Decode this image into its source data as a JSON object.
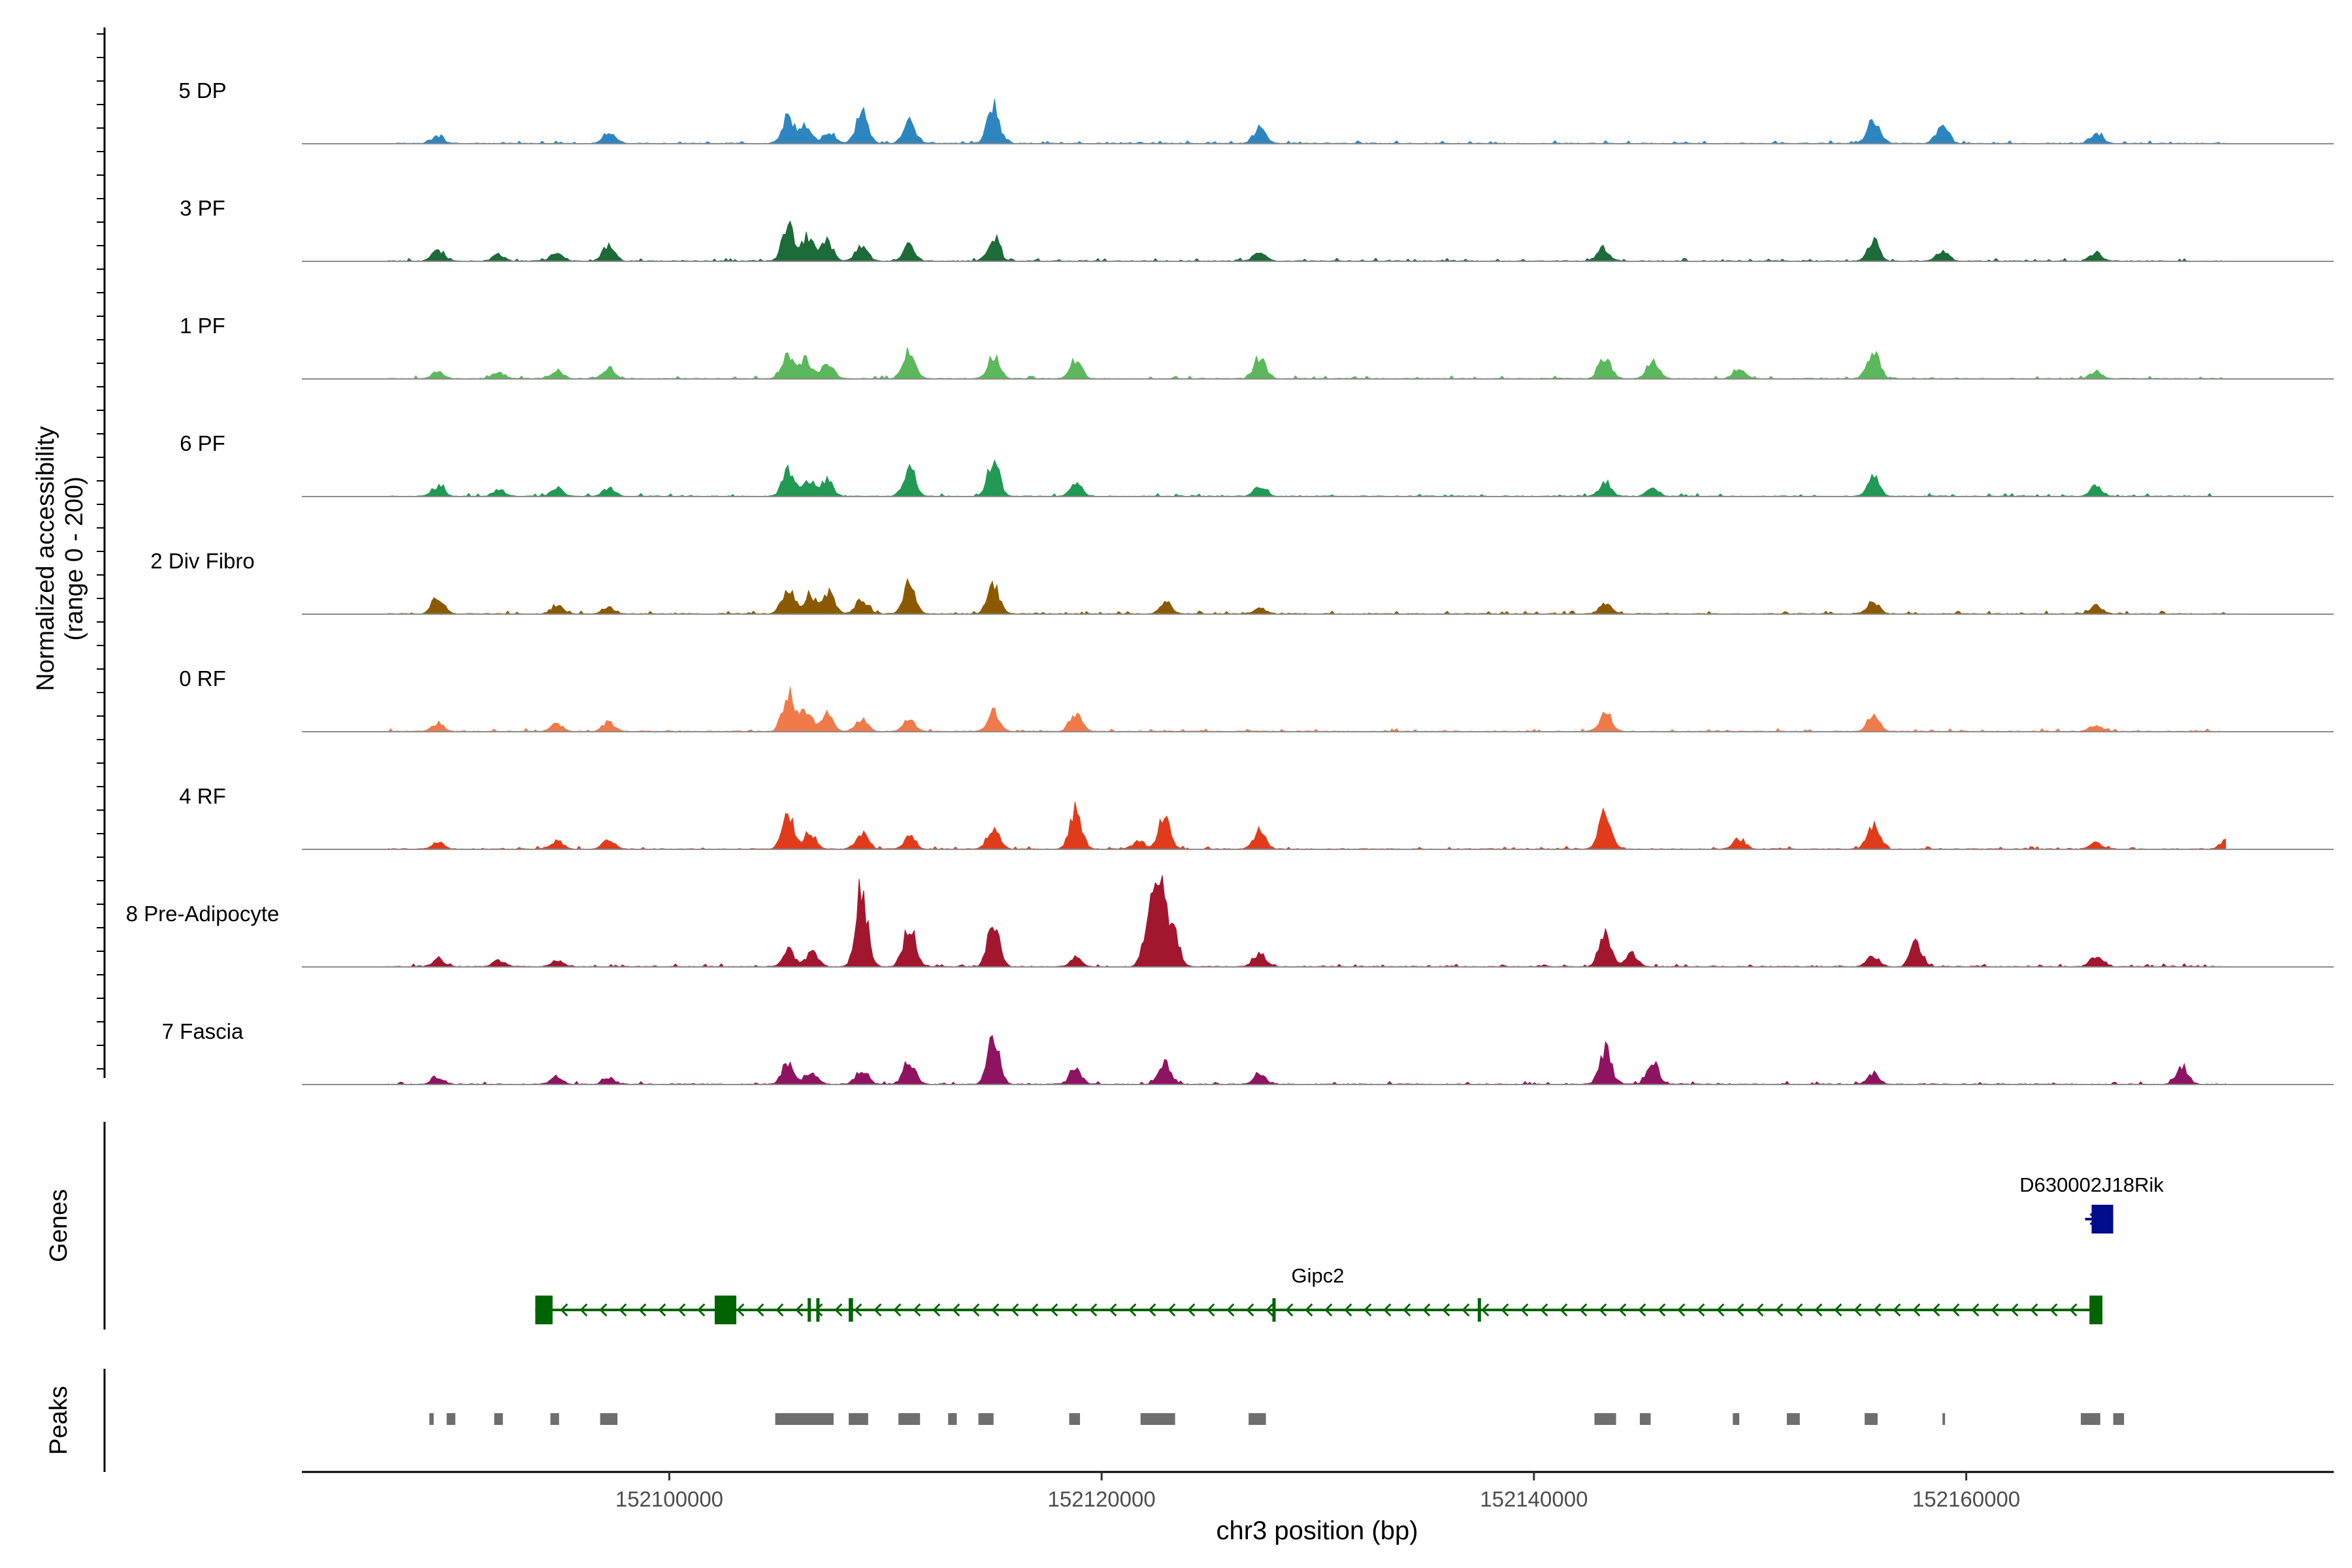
{
  "chart_data": {
    "type": "area",
    "title": "",
    "ylabel_line1": "Normalized accessibility",
    "ylabel_line2": "(range 0 - 200)",
    "ylim": [
      0,
      200
    ],
    "xlabel": "chr3 position (bp)",
    "xlim": [
      152083000,
      152177000
    ],
    "xticks": [
      152100000,
      152120000,
      152140000,
      152160000
    ],
    "xtick_labels": [
      "152100000",
      "152120000",
      "152140000",
      "152160000"
    ],
    "data_range": [
      152087000,
      152172000
    ],
    "series": [
      {
        "name": "5 DP",
        "color": "#2E86C1",
        "peaks": [
          [
            152089300,
            18
          ],
          [
            152097200,
            28
          ],
          [
            152105500,
            60
          ],
          [
            152106300,
            40
          ],
          [
            152107400,
            30
          ],
          [
            152108900,
            75
          ],
          [
            152111100,
            58
          ],
          [
            152115000,
            88
          ],
          [
            152127300,
            35
          ],
          [
            152155700,
            55
          ],
          [
            152158900,
            48
          ],
          [
            152166000,
            25
          ]
        ]
      },
      {
        "name": "3 PF",
        "color": "#1E6B3A",
        "peaks": [
          [
            152089300,
            25
          ],
          [
            152092100,
            15
          ],
          [
            152094800,
            20
          ],
          [
            152097200,
            38
          ],
          [
            152105500,
            80
          ],
          [
            152106400,
            60
          ],
          [
            152107300,
            45
          ],
          [
            152108900,
            40
          ],
          [
            152111100,
            36
          ],
          [
            152115000,
            58
          ],
          [
            152127300,
            20
          ],
          [
            152143200,
            30
          ],
          [
            152155700,
            48
          ],
          [
            152158900,
            25
          ],
          [
            152166000,
            20
          ]
        ]
      },
      {
        "name": "1 PF",
        "color": "#5CB85C",
        "peaks": [
          [
            152089300,
            15
          ],
          [
            152092100,
            15
          ],
          [
            152094800,
            18
          ],
          [
            152097200,
            22
          ],
          [
            152105500,
            60
          ],
          [
            152106300,
            48
          ],
          [
            152107300,
            38
          ],
          [
            152111100,
            65
          ],
          [
            152115000,
            55
          ],
          [
            152118800,
            45
          ],
          [
            152127300,
            52
          ],
          [
            152143300,
            55
          ],
          [
            152145500,
            40
          ],
          [
            152149500,
            25
          ],
          [
            152155700,
            70
          ],
          [
            152166000,
            18
          ]
        ]
      },
      {
        "name": "6 PF",
        "color": "#229954",
        "peaks": [
          [
            152089300,
            25
          ],
          [
            152092100,
            15
          ],
          [
            152094800,
            20
          ],
          [
            152097200,
            22
          ],
          [
            152105500,
            60
          ],
          [
            152106400,
            42
          ],
          [
            152107300,
            38
          ],
          [
            152111100,
            70
          ],
          [
            152115000,
            85
          ],
          [
            152118800,
            30
          ],
          [
            152127300,
            25
          ],
          [
            152143300,
            35
          ],
          [
            152145500,
            20
          ],
          [
            152155700,
            45
          ],
          [
            152166000,
            25
          ]
        ]
      },
      {
        "name": "2 Div Fibro",
        "color": "#8B5A00",
        "peaks": [
          [
            152089300,
            40
          ],
          [
            152094800,
            20
          ],
          [
            152097200,
            15
          ],
          [
            152105500,
            65
          ],
          [
            152106500,
            45
          ],
          [
            152107400,
            50
          ],
          [
            152108900,
            35
          ],
          [
            152111100,
            78
          ],
          [
            152115000,
            70
          ],
          [
            152123000,
            25
          ],
          [
            152127300,
            15
          ],
          [
            152143300,
            25
          ],
          [
            152155700,
            30
          ],
          [
            152166000,
            18
          ]
        ]
      },
      {
        "name": "0 RF",
        "color": "#F07A4A",
        "peaks": [
          [
            152089300,
            20
          ],
          [
            152094800,
            18
          ],
          [
            152097200,
            22
          ],
          [
            152105500,
            88
          ],
          [
            152106300,
            55
          ],
          [
            152107300,
            40
          ],
          [
            152108900,
            30
          ],
          [
            152111100,
            28
          ],
          [
            152115000,
            48
          ],
          [
            152118800,
            45
          ],
          [
            152143300,
            42
          ],
          [
            152155700,
            40
          ],
          [
            152166000,
            15
          ]
        ]
      },
      {
        "name": "4 RF",
        "color": "#E03C1C",
        "peaks": [
          [
            152089300,
            15
          ],
          [
            152094800,
            20
          ],
          [
            152097200,
            25
          ],
          [
            152105500,
            80
          ],
          [
            152106500,
            40
          ],
          [
            152108900,
            38
          ],
          [
            152111100,
            28
          ],
          [
            152115000,
            55
          ],
          [
            152118800,
            95
          ],
          [
            152121700,
            18
          ],
          [
            152122900,
            78
          ],
          [
            152127300,
            45
          ],
          [
            152143300,
            85
          ],
          [
            152149500,
            25
          ],
          [
            152155700,
            55
          ],
          [
            152166000,
            15
          ],
          [
            152172000,
            18
          ]
        ]
      },
      {
        "name": "8 Pre-Adipocyte",
        "color": "#A3172E",
        "peaks": [
          [
            152089300,
            18
          ],
          [
            152092100,
            15
          ],
          [
            152094800,
            15
          ],
          [
            152105500,
            40
          ],
          [
            152106600,
            35
          ],
          [
            152108900,
            180
          ],
          [
            152111100,
            100
          ],
          [
            152115000,
            100
          ],
          [
            152118800,
            20
          ],
          [
            152122200,
            120
          ],
          [
            152122700,
            170
          ],
          [
            152123300,
            95
          ],
          [
            152127300,
            35
          ],
          [
            152143300,
            85
          ],
          [
            152144500,
            30
          ],
          [
            152155700,
            28
          ],
          [
            152157700,
            55
          ],
          [
            152166000,
            25
          ]
        ]
      },
      {
        "name": "7 Fascia",
        "color": "#8E1461",
        "peaks": [
          [
            152089300,
            15
          ],
          [
            152094800,
            18
          ],
          [
            152097200,
            15
          ],
          [
            152105500,
            55
          ],
          [
            152106600,
            30
          ],
          [
            152108900,
            35
          ],
          [
            152111100,
            55
          ],
          [
            152115000,
            110
          ],
          [
            152118800,
            40
          ],
          [
            152122900,
            55
          ],
          [
            152127300,
            25
          ],
          [
            152143300,
            85
          ],
          [
            152145500,
            55
          ],
          [
            152155700,
            25
          ],
          [
            152170000,
            40
          ]
        ]
      }
    ]
  },
  "genes": {
    "panel_label": "Genes",
    "items": [
      {
        "name": "Gipc2",
        "strand": "-",
        "color": "#006400",
        "start": 152093800,
        "end": 152166200,
        "exons": [
          [
            152093800,
            152094600
          ],
          [
            152102100,
            152103100
          ],
          [
            152106400,
            152106550
          ],
          [
            152106800,
            152106950
          ],
          [
            152108300,
            152108500
          ],
          [
            152127900,
            152128000
          ],
          [
            152137400,
            152137550
          ],
          [
            152165700,
            152166300
          ]
        ],
        "label_pos": 152130000
      },
      {
        "name": "D630002J18Rik",
        "strand": "+",
        "color": "#000C8C",
        "start": 152165500,
        "end": 152166800,
        "exons": [
          [
            152165800,
            152166800
          ]
        ],
        "label_pos": 152165800
      }
    ]
  },
  "peaks_track": {
    "panel_label": "Peaks",
    "color": "#6E6E6E",
    "regions": [
      [
        152088900,
        152089100
      ],
      [
        152089700,
        152090100
      ],
      [
        152091900,
        152092300
      ],
      [
        152094500,
        152094900
      ],
      [
        152096800,
        152097600
      ],
      [
        152104900,
        152107600
      ],
      [
        152108300,
        152109200
      ],
      [
        152110600,
        152111600
      ],
      [
        152112900,
        152113300
      ],
      [
        152114300,
        152115000
      ],
      [
        152118500,
        152119000
      ],
      [
        152121800,
        152123400
      ],
      [
        152126800,
        152127600
      ],
      [
        152142800,
        152143800
      ],
      [
        152144900,
        152145400
      ],
      [
        152149200,
        152149500
      ],
      [
        152151700,
        152152300
      ],
      [
        152155300,
        152155900
      ],
      [
        152158900,
        152159000
      ],
      [
        152165300,
        152166200
      ],
      [
        152166800,
        152167300
      ]
    ]
  }
}
